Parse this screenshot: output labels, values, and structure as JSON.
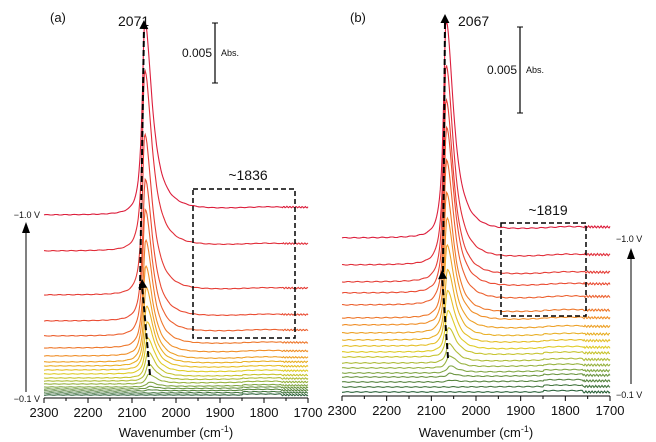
{
  "chart_data": [
    {
      "type": "line",
      "panel_label": "(a)",
      "xlabel": "Wavenumber (cm",
      "xlabel_sup": "-1",
      "xlabel_close": ")",
      "xlim": [
        2300,
        1700
      ],
      "x_ticks": [
        "2300",
        "2200",
        "2100",
        "2000",
        "1900",
        "1800",
        "1700"
      ],
      "grid": false,
      "peak_label": "2071",
      "box_label": "~1836",
      "box_range_cm": [
        1960,
        1730
      ],
      "scale_bar": {
        "value": "0.005",
        "unit": "Abs.",
        "abs": 0.005
      },
      "potential_top": "−1.0 V",
      "potential_bottom": "−0.1 V",
      "series_order": "bottom (-0.1 V, green) to top (-1.0 V, red)",
      "series": [
        {
          "peak_cm": 2060,
          "peak_abs": 0.0
        },
        {
          "peak_cm": 2060,
          "peak_abs": 0.0
        },
        {
          "peak_cm": 2060,
          "peak_abs": 0.0001
        },
        {
          "peak_cm": 2060,
          "peak_abs": 0.0002
        },
        {
          "peak_cm": 2061,
          "peak_abs": 0.0004
        },
        {
          "peak_cm": 2062,
          "peak_abs": 0.0008
        },
        {
          "peak_cm": 2063,
          "peak_abs": 0.0014
        },
        {
          "peak_cm": 2064,
          "peak_abs": 0.0022
        },
        {
          "peak_cm": 2065,
          "peak_abs": 0.003
        },
        {
          "peak_cm": 2066,
          "peak_abs": 0.004
        },
        {
          "peak_cm": 2067,
          "peak_abs": 0.005
        },
        {
          "peak_cm": 2068,
          "peak_abs": 0.0062
        },
        {
          "peak_cm": 2069,
          "peak_abs": 0.0075
        },
        {
          "peak_cm": 2069,
          "peak_abs": 0.009
        },
        {
          "peak_cm": 2070,
          "peak_abs": 0.0105
        },
        {
          "peak_cm": 2070,
          "peak_abs": 0.0118
        },
        {
          "peak_cm": 2071,
          "peak_abs": 0.0134
        },
        {
          "peak_cm": 2071,
          "peak_abs": 0.015
        },
        {
          "peak_cm": 2071,
          "peak_abs": 0.0161
        }
      ]
    },
    {
      "type": "line",
      "panel_label": "(b)",
      "xlabel": "Wavenumber (cm",
      "xlabel_sup": "-1",
      "xlabel_close": ")",
      "xlim": [
        2300,
        1700
      ],
      "x_ticks": [
        "2300",
        "2200",
        "2100",
        "2000",
        "1900",
        "1800",
        "1700"
      ],
      "grid": false,
      "peak_label": "2067",
      "box_label": "~1819",
      "box_range_cm": [
        1945,
        1755
      ],
      "scale_bar": {
        "value": "0.005",
        "unit": "Abs.",
        "abs": 0.005
      },
      "potential_top": "−1.0 V",
      "potential_bottom": "−0.1 V",
      "series_order": "bottom (-0.1 V, green) to top (-1.0 V, red)",
      "series": [
        {
          "peak_cm": 2058,
          "peak_abs": 0.0
        },
        {
          "peak_cm": 2058,
          "peak_abs": 0.0
        },
        {
          "peak_cm": 2058,
          "peak_abs": 0.0001
        },
        {
          "peak_cm": 2059,
          "peak_abs": 0.0002
        },
        {
          "peak_cm": 2059,
          "peak_abs": 0.0004
        },
        {
          "peak_cm": 2060,
          "peak_abs": 0.0007
        },
        {
          "peak_cm": 2061,
          "peak_abs": 0.0011
        },
        {
          "peak_cm": 2062,
          "peak_abs": 0.0017
        },
        {
          "peak_cm": 2063,
          "peak_abs": 0.0024
        },
        {
          "peak_cm": 2064,
          "peak_abs": 0.0032
        },
        {
          "peak_cm": 2064,
          "peak_abs": 0.0041
        },
        {
          "peak_cm": 2065,
          "peak_abs": 0.0051
        },
        {
          "peak_cm": 2065,
          "peak_abs": 0.0062
        },
        {
          "peak_cm": 2066,
          "peak_abs": 0.0073
        },
        {
          "peak_cm": 2066,
          "peak_abs": 0.0084
        },
        {
          "peak_cm": 2066,
          "peak_abs": 0.0096
        },
        {
          "peak_cm": 2067,
          "peak_abs": 0.0106
        },
        {
          "peak_cm": 2067,
          "peak_abs": 0.0116
        },
        {
          "peak_cm": 2067,
          "peak_abs": 0.0126
        }
      ]
    }
  ]
}
